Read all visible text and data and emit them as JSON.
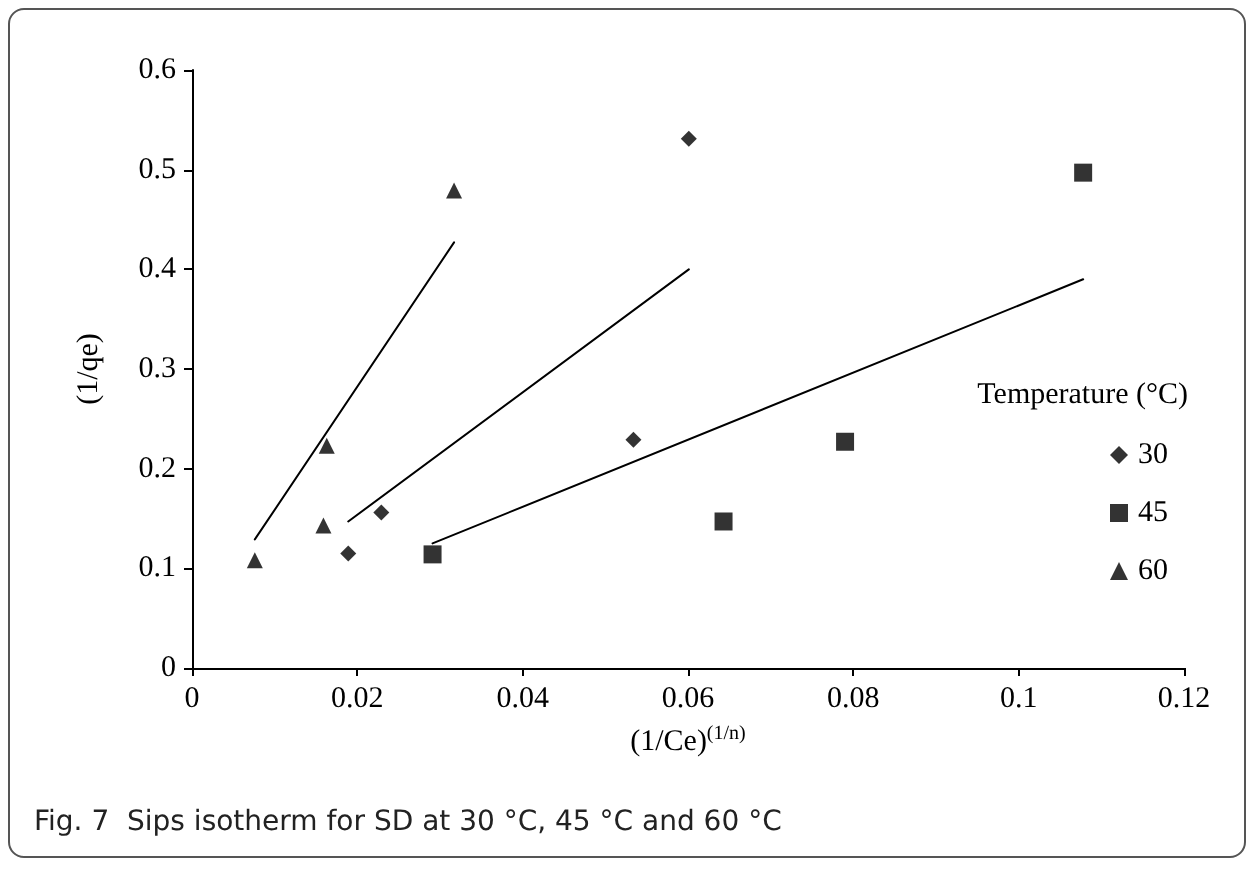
{
  "chart_data": {
    "type": "scatter",
    "title": "Fig. 7  Sips isotherm for SD at 30 °C, 45 °C and 60 °C",
    "xlabel": "(1/Ce)$^{(1/n)}$",
    "ylabel": "(1/qe)",
    "legend_title": "Temperature (°C)",
    "legend": "right",
    "grid": false,
    "xlim": [
      0,
      0.12
    ],
    "xticks": [
      0,
      0.02,
      0.04,
      0.06,
      0.08,
      0.1,
      0.12
    ],
    "ylim": [
      0,
      0.6
    ],
    "yticks": [
      0,
      0.1,
      0.2,
      0.3,
      0.4,
      0.5,
      0.6
    ],
    "series": [
      {
        "name": "30",
        "marker": "diamond",
        "color": "#000000",
        "x": [
          0.0189,
          0.0229,
          0.0534,
          0.0601
        ],
        "values": [
          0.115,
          0.156,
          0.229,
          0.531
        ]
      },
      {
        "name": "45",
        "marker": "square",
        "color": "#000000",
        "x": [
          0.0291,
          0.0643,
          0.079,
          0.1078
        ],
        "values": [
          0.114,
          0.147,
          0.227,
          0.497
        ]
      },
      {
        "name": "60",
        "marker": "triangle",
        "color": "#000000",
        "x": [
          0.0076,
          0.0159,
          0.0163,
          0.0317
        ],
        "values": [
          0.108,
          0.143,
          0.223,
          0.479
        ]
      },
      {
        "type": "line",
        "marker": "none",
        "color": "#000000",
        "x": [
          0.0189,
          0.0601
        ],
        "values": [
          0.147,
          0.4
        ]
      },
      {
        "type": "line",
        "marker": "none",
        "color": "#000000",
        "x": [
          0.0291,
          0.1078
        ],
        "values": [
          0.125,
          0.39
        ]
      },
      {
        "type": "line",
        "marker": "none",
        "color": "#000000",
        "x": [
          0.0076,
          0.0317
        ],
        "values": [
          0.129,
          0.427
        ]
      }
    ]
  }
}
